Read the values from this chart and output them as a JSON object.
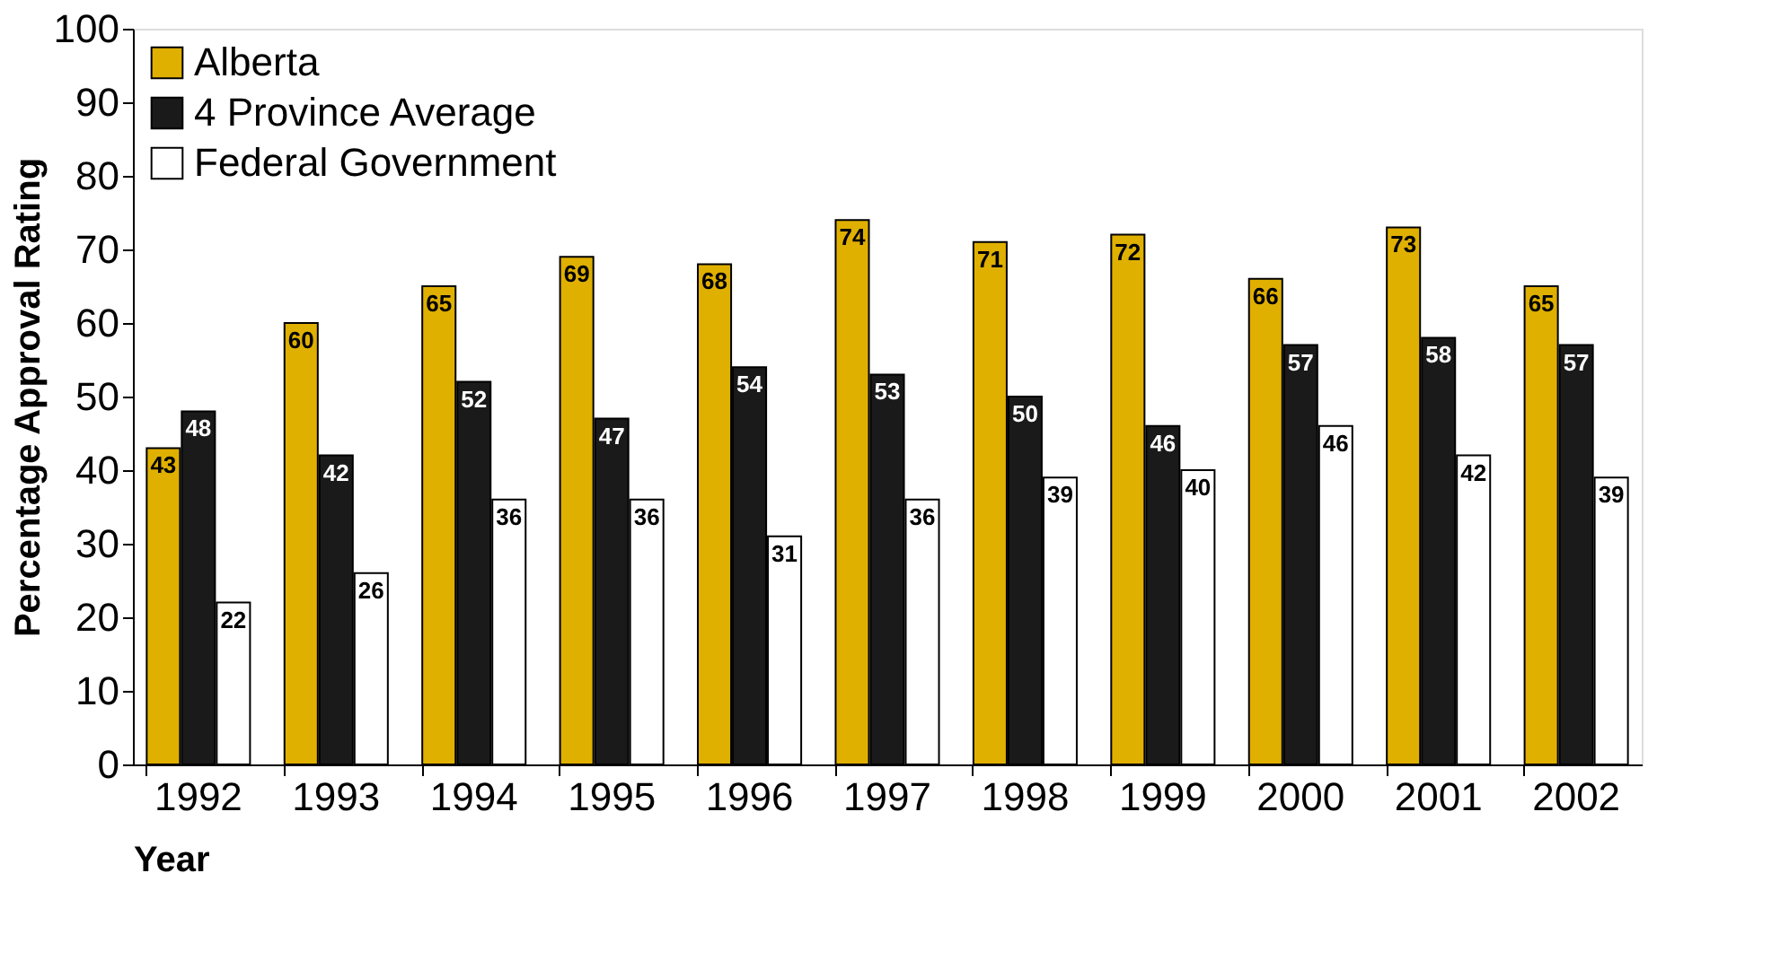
{
  "chart_data": {
    "type": "bar",
    "xlabel": "Year",
    "ylabel": "Percentage Approval Rating",
    "categories": [
      "1992",
      "1993",
      "1994",
      "1995",
      "1996",
      "1997",
      "1998",
      "1999",
      "2000",
      "2001",
      "2002"
    ],
    "series": [
      {
        "name": "Alberta",
        "color": "#e0b000",
        "values": [
          43,
          60,
          65,
          69,
          68,
          74,
          71,
          72,
          66,
          73,
          65
        ]
      },
      {
        "name": "4 Province Average",
        "color": "#1a1a1a",
        "values": [
          48,
          42,
          52,
          47,
          54,
          53,
          50,
          46,
          57,
          58,
          57
        ]
      },
      {
        "name": "Federal Government",
        "color": "#ffffff",
        "values": [
          22,
          26,
          36,
          36,
          31,
          36,
          39,
          40,
          46,
          42,
          39
        ]
      }
    ],
    "ylim": [
      0,
      100
    ],
    "yticks": [
      0,
      10,
      20,
      30,
      40,
      50,
      60,
      70,
      80,
      90,
      100
    ],
    "grid": false,
    "legend": "top left",
    "data_labels": true
  }
}
